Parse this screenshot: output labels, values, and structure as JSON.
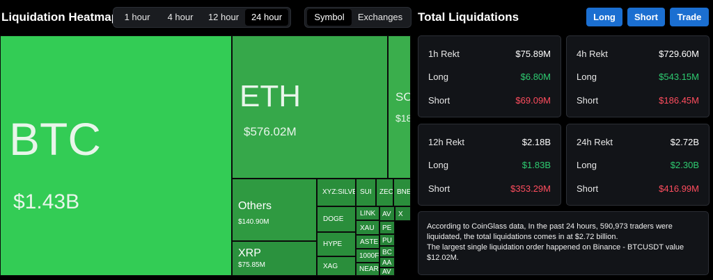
{
  "heatmap": {
    "title": "Liquidation Heatmap",
    "time_options": [
      "1 hour",
      "4 hour",
      "12 hour",
      "24 hour"
    ],
    "time_selected": "24 hour",
    "view_options": [
      "Symbol",
      "Exchanges"
    ],
    "view_selected": "Symbol"
  },
  "treemap_tiles": [
    {
      "symbol": "BTC",
      "value": "$1.43B",
      "color": "#33cc55"
    },
    {
      "symbol": "ETH",
      "value": "$576.02M",
      "color": "#36a84a"
    },
    {
      "symbol": "SOL",
      "value": "$18",
      "color": "#3aae4c"
    },
    {
      "symbol": "Others",
      "value": "$140.90M",
      "color": "#2f9a41"
    },
    {
      "symbol": "XRP",
      "value": "$75.85M",
      "color": "#2b923e"
    },
    {
      "symbol": "XYZ:SILVE",
      "value": "",
      "color": "#2a8e3b"
    },
    {
      "symbol": "SUI",
      "value": "",
      "color": "#2a8e3b"
    },
    {
      "symbol": "ZEC",
      "value": "",
      "color": "#2a8e3b"
    },
    {
      "symbol": "BNE",
      "value": "",
      "color": "#2a8e3b"
    },
    {
      "symbol": "DOGE",
      "value": "",
      "color": "#2a8e3b"
    },
    {
      "symbol": "HYPE",
      "value": "",
      "color": "#2a8e3b"
    },
    {
      "symbol": "XAG",
      "value": "",
      "color": "#2a8e3b"
    },
    {
      "symbol": "LINK",
      "value": "",
      "color": "#28893a"
    },
    {
      "symbol": "XAU",
      "value": "",
      "color": "#28893a"
    },
    {
      "symbol": "ASTE",
      "value": "",
      "color": "#28893a"
    },
    {
      "symbol": "1000F",
      "value": "",
      "color": "#28893a"
    },
    {
      "symbol": "NEAR",
      "value": "",
      "color": "#28893a"
    },
    {
      "symbol": "AV",
      "value": "",
      "color": "#278538"
    },
    {
      "symbol": "X",
      "value": "",
      "color": "#278538"
    },
    {
      "symbol": "PE",
      "value": "",
      "color": "#278538"
    },
    {
      "symbol": "PU",
      "value": "",
      "color": "#278538"
    },
    {
      "symbol": "BC",
      "value": "",
      "color": "#278538"
    },
    {
      "symbol": "AA",
      "value": "",
      "color": "#278538"
    },
    {
      "symbol": "AV",
      "value": "",
      "color": "#278538"
    }
  ],
  "total": {
    "title": "Total Liquidations",
    "buttons": [
      "Long",
      "Short",
      "Trade"
    ],
    "cards": [
      {
        "period": "1h Rekt",
        "total": "$75.89M",
        "long_label": "Long",
        "long": "$6.80M",
        "short_label": "Short",
        "short": "$69.09M"
      },
      {
        "period": "4h Rekt",
        "total": "$729.60M",
        "long_label": "Long",
        "long": "$543.15M",
        "short_label": "Short",
        "short": "$186.45M"
      },
      {
        "period": "12h Rekt",
        "total": "$2.18B",
        "long_label": "Long",
        "long": "$1.83B",
        "short_label": "Short",
        "short": "$353.29M"
      },
      {
        "period": "24h Rekt",
        "total": "$2.72B",
        "long_label": "Long",
        "long": "$2.30B",
        "short_label": "Short",
        "short": "$416.99M"
      }
    ],
    "info_line1": "According to CoinGlass data, In the past 24 hours, 590,973 traders were liquidated, the total liquidations comes in at $2.72 billion.",
    "info_line2": "The largest single liquidation order happened on Binance - BTCUSDT value $12.02M."
  },
  "colors": {
    "long": "#2ecc71",
    "short": "#ff4d5e",
    "accent": "#1b6fd1"
  }
}
